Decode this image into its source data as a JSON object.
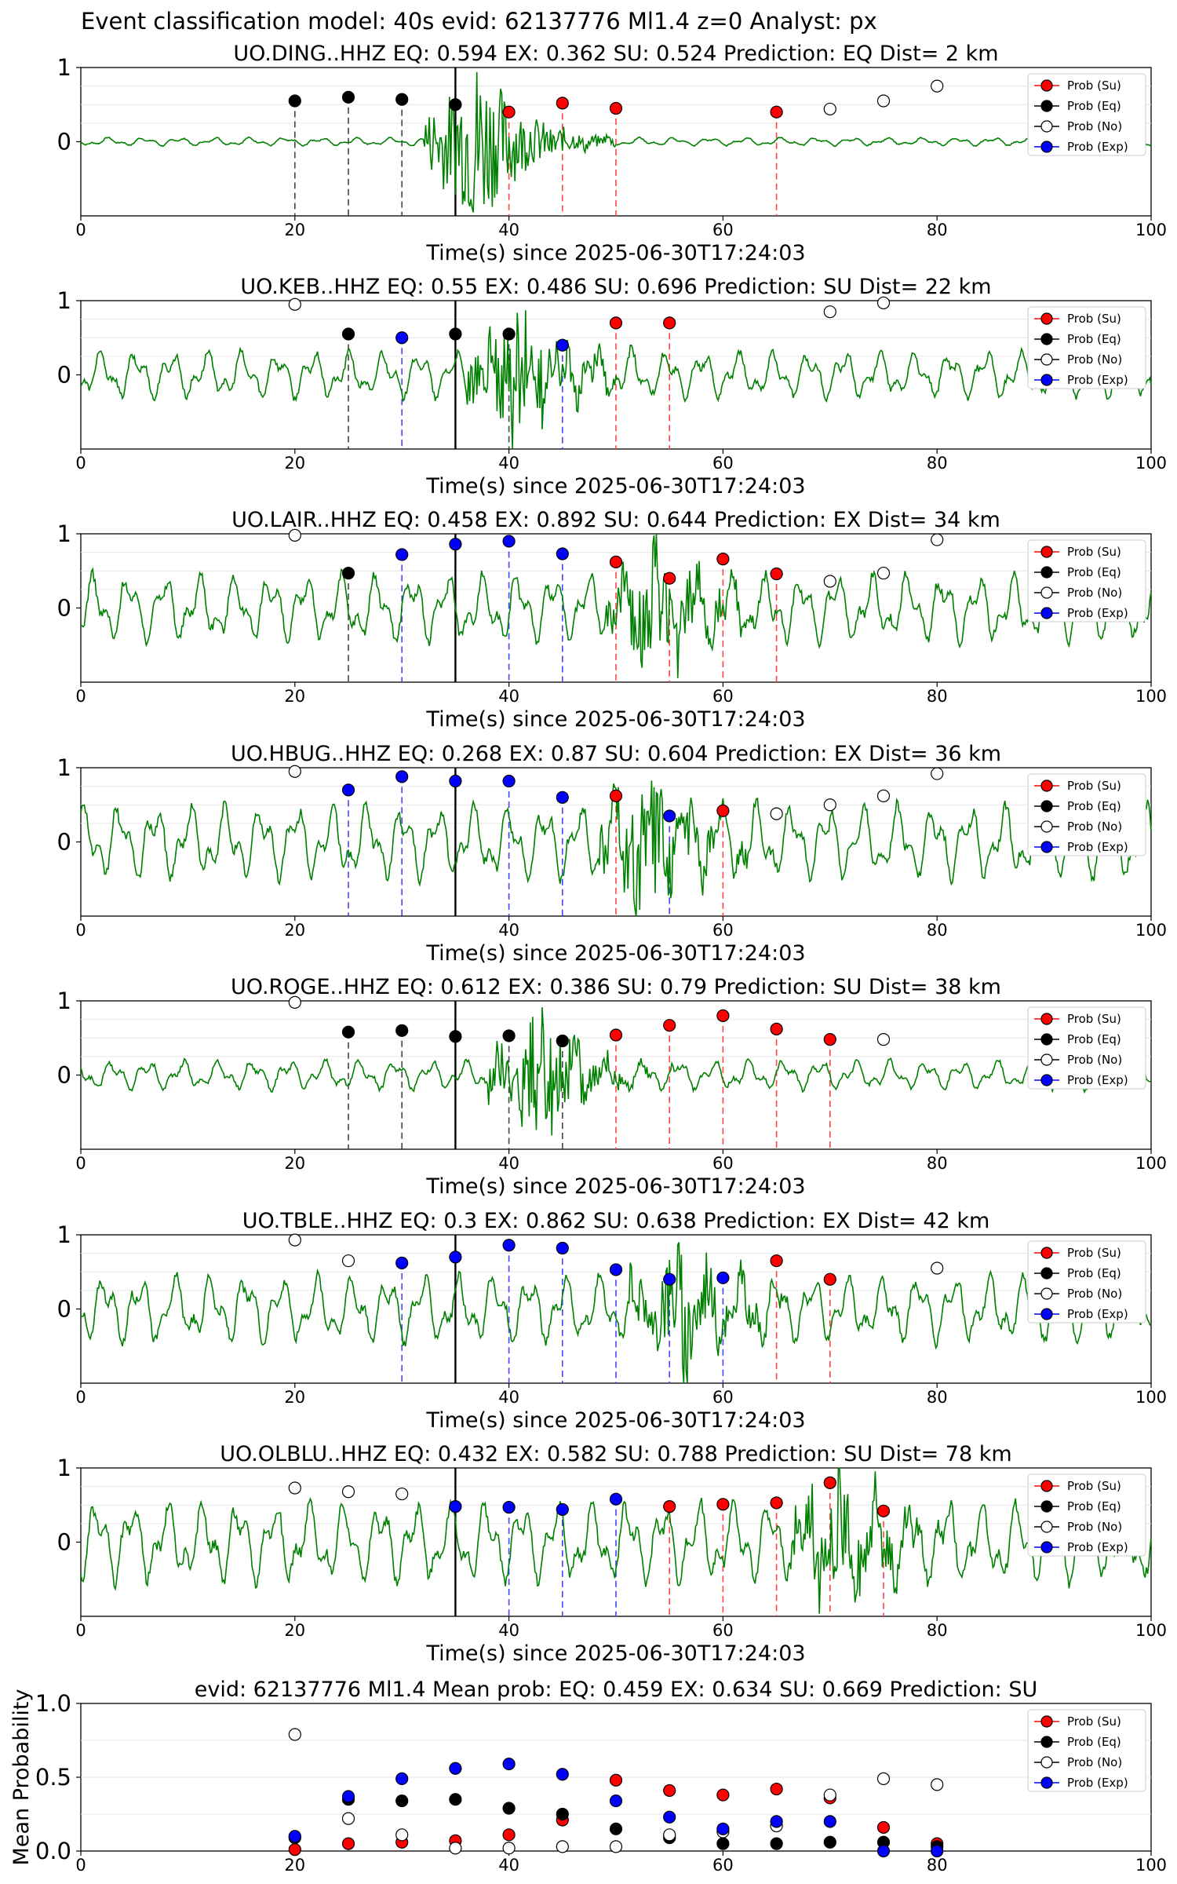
{
  "figure_title": "Event classification model: 40s evid: 62137776 Ml1.4 z=0 Analyst: px",
  "xlabel": "Time(s) since 2025-06-30T17:24:03",
  "legend": [
    "Prob (Su)",
    "Prob (Eq)",
    "Prob (No)",
    "Prob (Exp)"
  ],
  "colors": {
    "su": "#ff0000",
    "eq": "#000000",
    "no": "#ffffff",
    "exp": "#0000ff",
    "trace": "#008000"
  },
  "chart_data": [
    {
      "type": "scatter",
      "title": "UO.DING..HHZ   EQ: 0.594  EX: 0.362  SU: 0.524   Prediction: EQ    Dist= 2 km",
      "xlim": [
        0,
        100
      ],
      "ylim": [
        -1,
        1
      ],
      "yticks": [
        "1",
        "0"
      ],
      "xticks": [
        "0",
        "20",
        "40",
        "60",
        "80",
        "100"
      ],
      "waveform_amplitude": 0.06,
      "event_spike": 36,
      "origin_line": 35,
      "points": [
        {
          "x": 20,
          "y": 0.55,
          "cls": "eq"
        },
        {
          "x": 25,
          "y": 0.6,
          "cls": "eq"
        },
        {
          "x": 30,
          "y": 0.57,
          "cls": "eq"
        },
        {
          "x": 35,
          "y": 0.5,
          "cls": "eq"
        },
        {
          "x": 40,
          "y": 0.4,
          "cls": "su"
        },
        {
          "x": 45,
          "y": 0.52,
          "cls": "su"
        },
        {
          "x": 50,
          "y": 0.45,
          "cls": "su"
        },
        {
          "x": 65,
          "y": 0.4,
          "cls": "su"
        },
        {
          "x": 70,
          "y": 0.44,
          "cls": "no"
        },
        {
          "x": 75,
          "y": 0.55,
          "cls": "no"
        },
        {
          "x": 80,
          "y": 0.75,
          "cls": "no"
        }
      ]
    },
    {
      "type": "scatter",
      "title": "UO.KEB..HHZ   EQ: 0.55  EX: 0.486  SU: 0.696   Prediction: SU    Dist= 22 km",
      "xlim": [
        0,
        100
      ],
      "ylim": [
        -1,
        1
      ],
      "yticks": [
        "1",
        "0"
      ],
      "xticks": [
        "0",
        "20",
        "40",
        "60",
        "80",
        "100"
      ],
      "waveform_amplitude": 0.35,
      "event_spike": 40,
      "origin_line": 35,
      "points": [
        {
          "x": 20,
          "y": 0.95,
          "cls": "no"
        },
        {
          "x": 25,
          "y": 0.55,
          "cls": "eq"
        },
        {
          "x": 30,
          "y": 0.5,
          "cls": "exp"
        },
        {
          "x": 35,
          "y": 0.55,
          "cls": "eq"
        },
        {
          "x": 40,
          "y": 0.55,
          "cls": "eq"
        },
        {
          "x": 45,
          "y": 0.4,
          "cls": "exp"
        },
        {
          "x": 50,
          "y": 0.7,
          "cls": "su"
        },
        {
          "x": 55,
          "y": 0.7,
          "cls": "su"
        },
        {
          "x": 70,
          "y": 0.85,
          "cls": "no"
        },
        {
          "x": 75,
          "y": 0.97,
          "cls": "no"
        }
      ]
    },
    {
      "type": "scatter",
      "title": "UO.LAIR..HHZ   EQ: 0.458  EX: 0.892  SU: 0.644   Prediction: EX    Dist= 34 km",
      "xlim": [
        0,
        100
      ],
      "ylim": [
        -1,
        1
      ],
      "yticks": [
        "1",
        "0"
      ],
      "xticks": [
        "0",
        "20",
        "40",
        "60",
        "80",
        "100"
      ],
      "waveform_amplitude": 0.5,
      "event_spike": 53,
      "origin_line": 35,
      "points": [
        {
          "x": 20,
          "y": 0.98,
          "cls": "no"
        },
        {
          "x": 25,
          "y": 0.47,
          "cls": "eq"
        },
        {
          "x": 30,
          "y": 0.72,
          "cls": "exp"
        },
        {
          "x": 35,
          "y": 0.86,
          "cls": "exp"
        },
        {
          "x": 40,
          "y": 0.9,
          "cls": "exp"
        },
        {
          "x": 45,
          "y": 0.73,
          "cls": "exp"
        },
        {
          "x": 50,
          "y": 0.62,
          "cls": "su"
        },
        {
          "x": 55,
          "y": 0.4,
          "cls": "su"
        },
        {
          "x": 60,
          "y": 0.66,
          "cls": "su"
        },
        {
          "x": 65,
          "y": 0.46,
          "cls": "su"
        },
        {
          "x": 70,
          "y": 0.36,
          "cls": "no"
        },
        {
          "x": 75,
          "y": 0.47,
          "cls": "no"
        },
        {
          "x": 80,
          "y": 0.92,
          "cls": "no"
        }
      ]
    },
    {
      "type": "scatter",
      "title": "UO.HBUG..HHZ   EQ: 0.268  EX: 0.87  SU: 0.604   Prediction: EX    Dist= 36 km",
      "xlim": [
        0,
        100
      ],
      "ylim": [
        -1,
        1
      ],
      "yticks": [
        "1",
        "0"
      ],
      "xticks": [
        "0",
        "20",
        "40",
        "60",
        "80",
        "100"
      ],
      "waveform_amplitude": 0.55,
      "event_spike": 52,
      "origin_line": 35,
      "points": [
        {
          "x": 20,
          "y": 0.95,
          "cls": "no"
        },
        {
          "x": 25,
          "y": 0.7,
          "cls": "exp"
        },
        {
          "x": 30,
          "y": 0.88,
          "cls": "exp"
        },
        {
          "x": 35,
          "y": 0.82,
          "cls": "exp"
        },
        {
          "x": 40,
          "y": 0.82,
          "cls": "exp"
        },
        {
          "x": 45,
          "y": 0.6,
          "cls": "exp"
        },
        {
          "x": 50,
          "y": 0.62,
          "cls": "su"
        },
        {
          "x": 55,
          "y": 0.35,
          "cls": "exp"
        },
        {
          "x": 60,
          "y": 0.42,
          "cls": "su"
        },
        {
          "x": 65,
          "y": 0.38,
          "cls": "no"
        },
        {
          "x": 70,
          "y": 0.5,
          "cls": "no"
        },
        {
          "x": 75,
          "y": 0.62,
          "cls": "no"
        },
        {
          "x": 80,
          "y": 0.92,
          "cls": "no"
        }
      ]
    },
    {
      "type": "scatter",
      "title": "UO.ROGE..HHZ   EQ: 0.612  EX: 0.386  SU: 0.79   Prediction: SU    Dist= 38 km",
      "xlim": [
        0,
        100
      ],
      "ylim": [
        -1,
        1
      ],
      "yticks": [
        "1",
        "0"
      ],
      "xticks": [
        "0",
        "20",
        "40",
        "60",
        "80",
        "100"
      ],
      "waveform_amplitude": 0.22,
      "event_spike": 42,
      "origin_line": 35,
      "points": [
        {
          "x": 20,
          "y": 0.98,
          "cls": "no"
        },
        {
          "x": 25,
          "y": 0.58,
          "cls": "eq"
        },
        {
          "x": 30,
          "y": 0.6,
          "cls": "eq"
        },
        {
          "x": 35,
          "y": 0.52,
          "cls": "eq"
        },
        {
          "x": 40,
          "y": 0.53,
          "cls": "eq"
        },
        {
          "x": 45,
          "y": 0.46,
          "cls": "eq"
        },
        {
          "x": 50,
          "y": 0.54,
          "cls": "su"
        },
        {
          "x": 55,
          "y": 0.67,
          "cls": "su"
        },
        {
          "x": 60,
          "y": 0.8,
          "cls": "su"
        },
        {
          "x": 65,
          "y": 0.62,
          "cls": "su"
        },
        {
          "x": 70,
          "y": 0.48,
          "cls": "su"
        },
        {
          "x": 75,
          "y": 0.48,
          "cls": "no"
        }
      ]
    },
    {
      "type": "scatter",
      "title": "UO.TBLE..HHZ   EQ: 0.3  EX: 0.862  SU: 0.638   Prediction: EX    Dist= 42 km",
      "xlim": [
        0,
        100
      ],
      "ylim": [
        -1,
        1
      ],
      "yticks": [
        "1",
        "0"
      ],
      "xticks": [
        "0",
        "20",
        "40",
        "60",
        "80",
        "100"
      ],
      "waveform_amplitude": 0.5,
      "event_spike": 55,
      "origin_line": 35,
      "points": [
        {
          "x": 20,
          "y": 0.93,
          "cls": "no"
        },
        {
          "x": 25,
          "y": 0.65,
          "cls": "no"
        },
        {
          "x": 30,
          "y": 0.62,
          "cls": "exp"
        },
        {
          "x": 35,
          "y": 0.7,
          "cls": "exp"
        },
        {
          "x": 40,
          "y": 0.86,
          "cls": "exp"
        },
        {
          "x": 45,
          "y": 0.82,
          "cls": "exp"
        },
        {
          "x": 50,
          "y": 0.53,
          "cls": "exp"
        },
        {
          "x": 55,
          "y": 0.4,
          "cls": "exp"
        },
        {
          "x": 60,
          "y": 0.42,
          "cls": "exp"
        },
        {
          "x": 65,
          "y": 0.65,
          "cls": "su"
        },
        {
          "x": 70,
          "y": 0.4,
          "cls": "su"
        },
        {
          "x": 80,
          "y": 0.55,
          "cls": "no"
        }
      ]
    },
    {
      "type": "scatter",
      "title": "UO.OLBLU..HHZ   EQ: 0.432  EX: 0.582  SU: 0.788   Prediction: SU    Dist= 78 km",
      "xlim": [
        0,
        100
      ],
      "ylim": [
        -1,
        1
      ],
      "yticks": [
        "1",
        "0"
      ],
      "xticks": [
        "0",
        "20",
        "40",
        "60",
        "80",
        "100"
      ],
      "waveform_amplitude": 0.6,
      "event_spike": 70,
      "origin_line": 35,
      "points": [
        {
          "x": 20,
          "y": 0.73,
          "cls": "no"
        },
        {
          "x": 25,
          "y": 0.68,
          "cls": "no"
        },
        {
          "x": 30,
          "y": 0.65,
          "cls": "no"
        },
        {
          "x": 35,
          "y": 0.48,
          "cls": "exp"
        },
        {
          "x": 40,
          "y": 0.47,
          "cls": "exp"
        },
        {
          "x": 45,
          "y": 0.44,
          "cls": "exp"
        },
        {
          "x": 50,
          "y": 0.58,
          "cls": "exp"
        },
        {
          "x": 55,
          "y": 0.48,
          "cls": "su"
        },
        {
          "x": 60,
          "y": 0.51,
          "cls": "su"
        },
        {
          "x": 65,
          "y": 0.53,
          "cls": "su"
        },
        {
          "x": 70,
          "y": 0.8,
          "cls": "su"
        },
        {
          "x": 75,
          "y": 0.42,
          "cls": "su"
        }
      ]
    },
    {
      "type": "scatter",
      "title": "evid: 62137776  Ml1.4   Mean prob:   EQ: 0.459  EX: 0.634  SU: 0.669   Prediction: SU",
      "ylabel": "Mean Probability",
      "xlim": [
        0,
        100
      ],
      "ylim": [
        0,
        1
      ],
      "yticks": [
        "1.0",
        "0.5",
        "0.0"
      ],
      "xticks": [
        "0",
        "20",
        "40",
        "60",
        "80",
        "100"
      ],
      "series": [
        {
          "name": "Prob (Su)",
          "cls": "su",
          "x": [
            20,
            25,
            30,
            35,
            40,
            45,
            50,
            55,
            60,
            65,
            70,
            75,
            80
          ],
          "y": [
            0.01,
            0.05,
            0.06,
            0.07,
            0.11,
            0.21,
            0.48,
            0.41,
            0.38,
            0.42,
            0.36,
            0.16,
            0.05
          ]
        },
        {
          "name": "Prob (Eq)",
          "cls": "eq",
          "x": [
            20,
            25,
            30,
            35,
            40,
            45,
            50,
            55,
            60,
            65,
            70,
            75,
            80
          ],
          "y": [
            0.09,
            0.35,
            0.34,
            0.35,
            0.29,
            0.25,
            0.15,
            0.09,
            0.05,
            0.05,
            0.06,
            0.06,
            0.03
          ]
        },
        {
          "name": "Prob (No)",
          "cls": "no",
          "x": [
            20,
            25,
            30,
            35,
            40,
            45,
            50,
            55,
            60,
            65,
            70,
            75,
            80
          ],
          "y": [
            0.79,
            0.22,
            0.11,
            0.02,
            0.02,
            0.03,
            0.03,
            0.11,
            0.13,
            0.17,
            0.38,
            0.49,
            0.45
          ]
        },
        {
          "name": "Prob (Exp)",
          "cls": "exp",
          "x": [
            20,
            25,
            30,
            35,
            40,
            45,
            50,
            55,
            60,
            65,
            70,
            75,
            80
          ],
          "y": [
            0.1,
            0.37,
            0.49,
            0.56,
            0.59,
            0.52,
            0.34,
            0.23,
            0.15,
            0.2,
            0.2,
            0.0,
            0.0
          ]
        }
      ]
    }
  ]
}
